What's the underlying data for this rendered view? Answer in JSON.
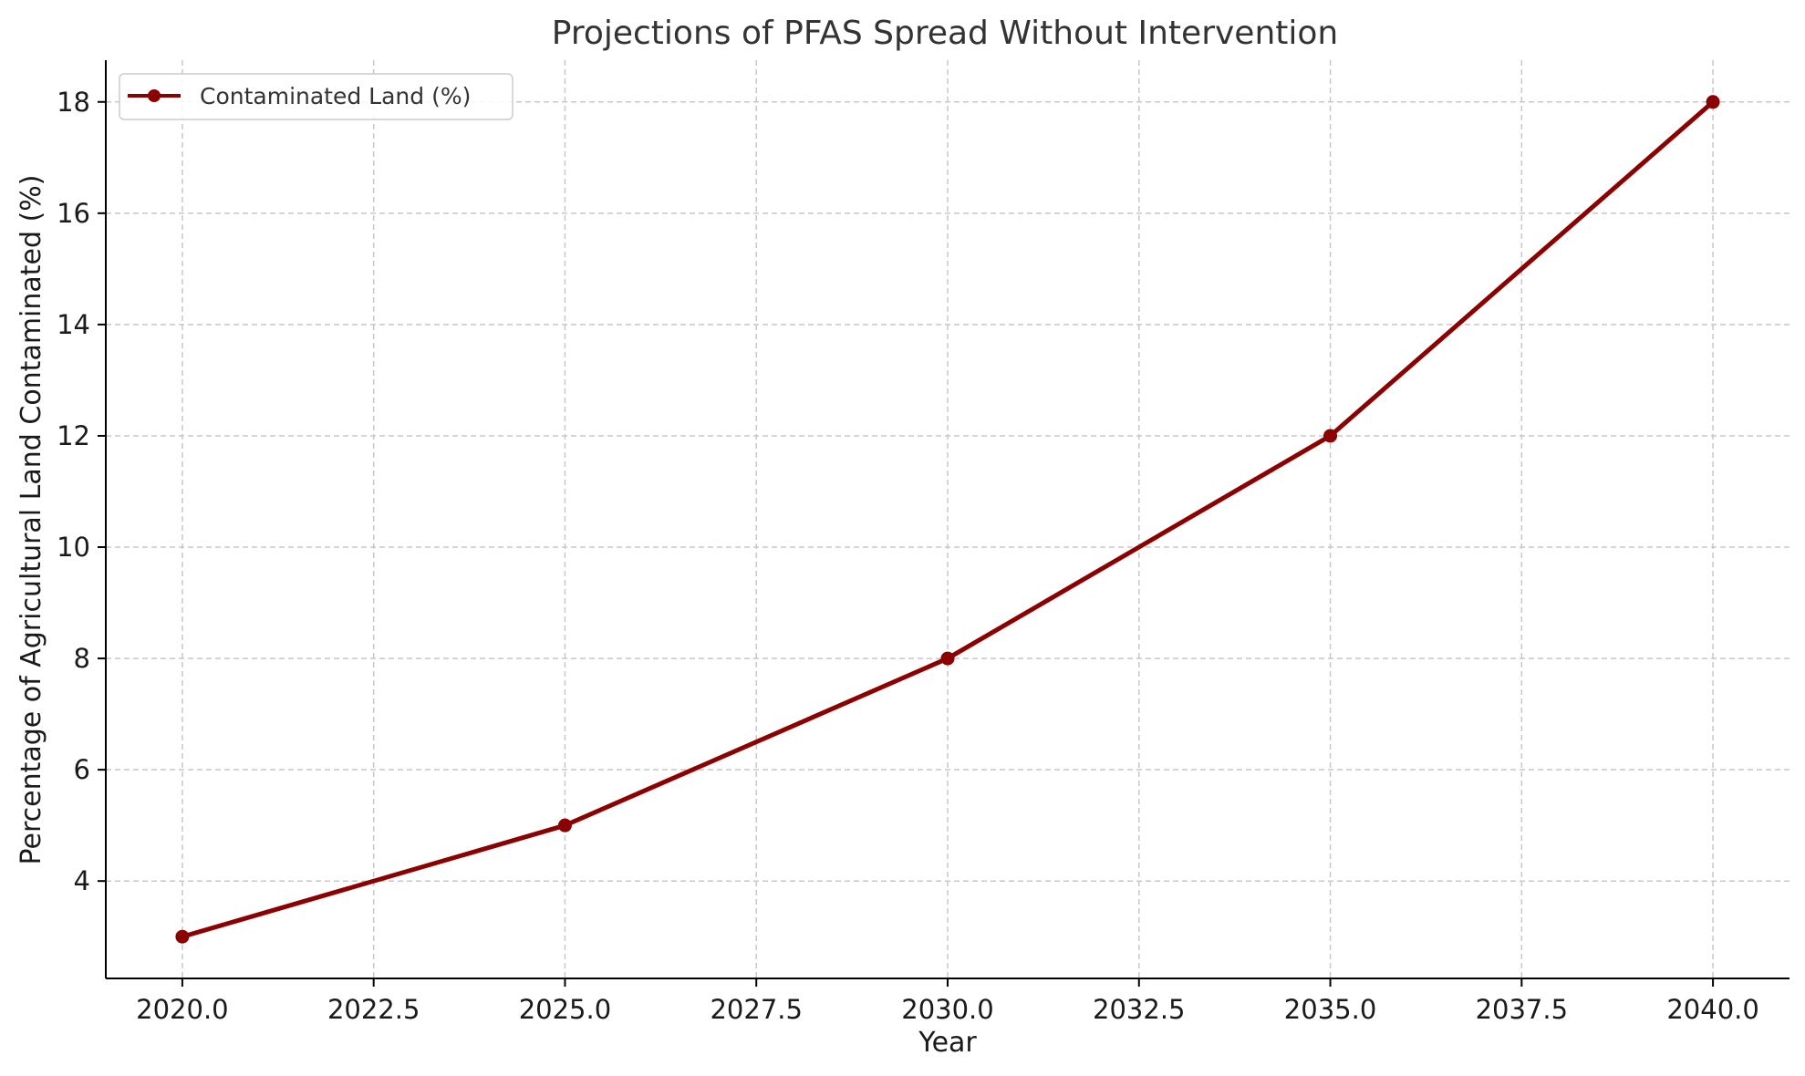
{
  "chart_data": {
    "type": "line",
    "title": "Projections of PFAS Spread Without Intervention",
    "xlabel": "Year",
    "ylabel": "Percentage of Agricultural Land Contaminated (%)",
    "x": [
      2020,
      2025,
      2030,
      2035,
      2040
    ],
    "series": [
      {
        "name": "Contaminated Land (%)",
        "values": [
          3,
          5,
          8,
          12,
          18
        ],
        "color": "#8b0000",
        "marker": "circle"
      }
    ],
    "xlim": [
      2019,
      2041
    ],
    "ylim": [
      2.25,
      18.75
    ],
    "xticks": [
      "2020.0",
      "2022.5",
      "2025.0",
      "2027.5",
      "2030.0",
      "2032.5",
      "2035.0",
      "2037.5",
      "2040.0"
    ],
    "xtick_values": [
      2020,
      2022.5,
      2025,
      2027.5,
      2030,
      2032.5,
      2035,
      2037.5,
      2040
    ],
    "yticks": [
      "4",
      "6",
      "8",
      "10",
      "12",
      "14",
      "16",
      "18"
    ],
    "ytick_values": [
      4,
      6,
      8,
      10,
      12,
      14,
      16,
      18
    ],
    "grid": true,
    "legend_position": "top-left"
  }
}
